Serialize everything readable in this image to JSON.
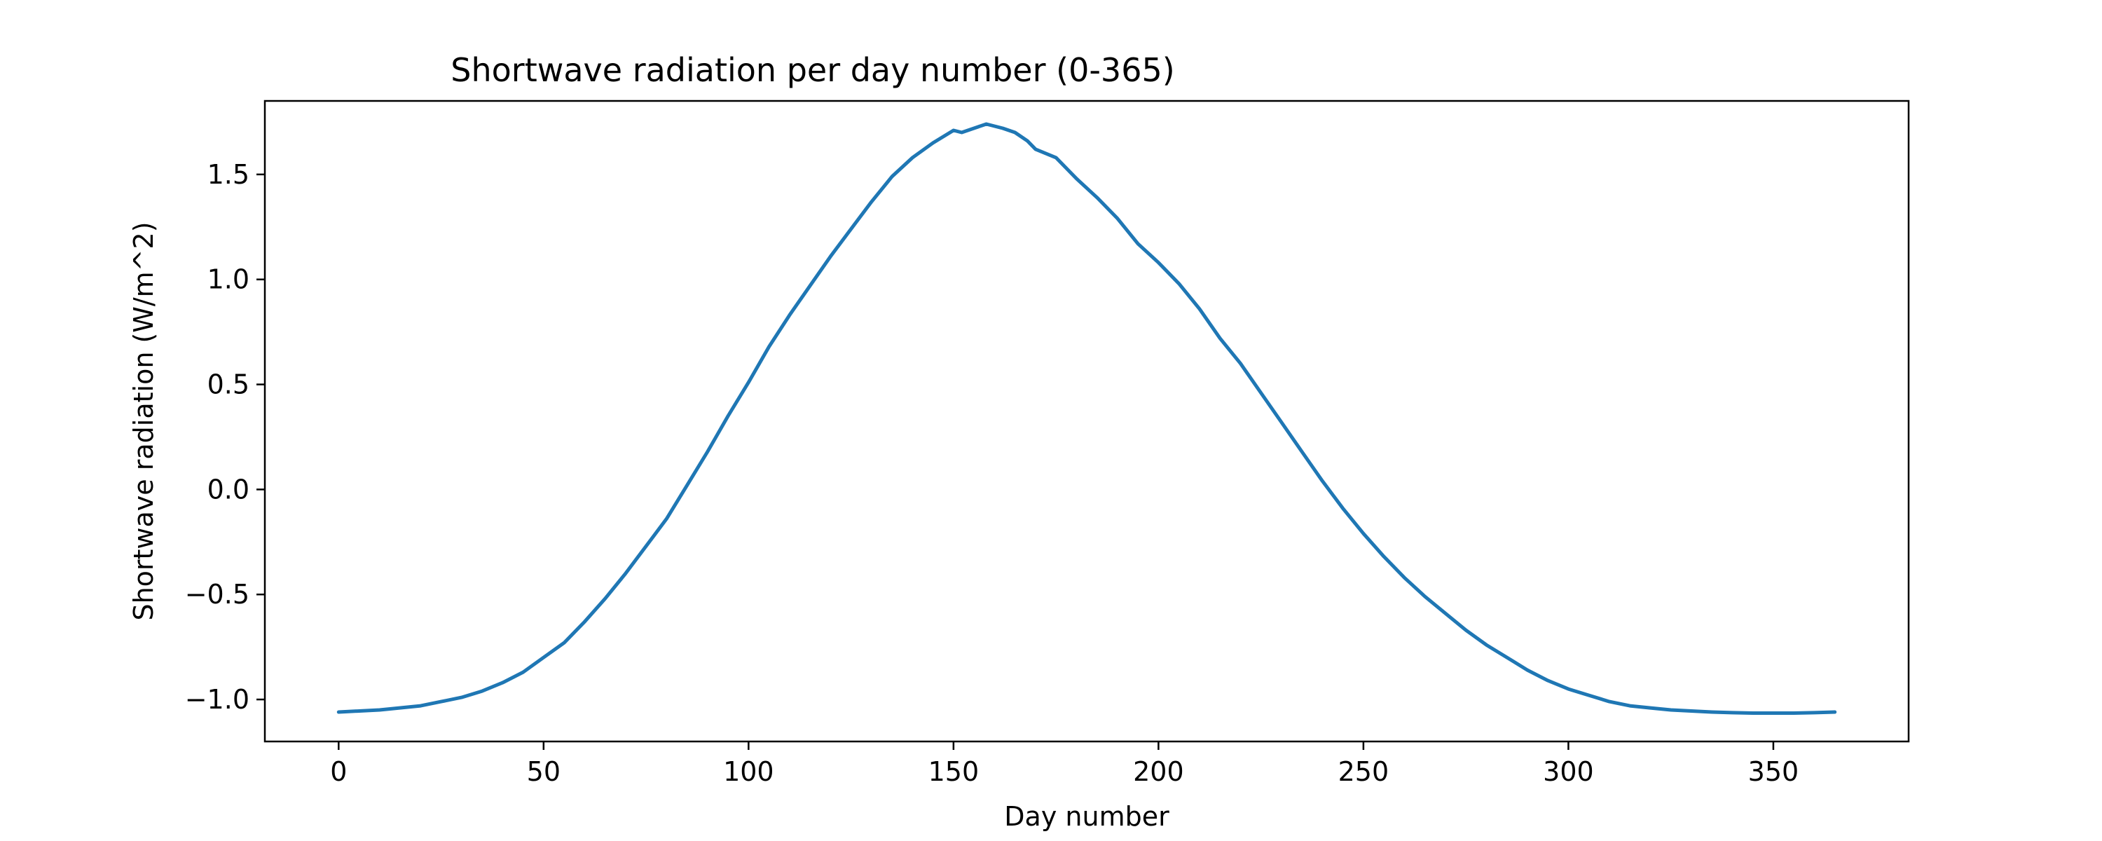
{
  "chart_data": {
    "type": "line",
    "title": "Shortwave radiation per day number (0-365)",
    "xlabel": "Day number",
    "ylabel": "Shortwave radiation (W/m^2)",
    "xlim": [
      -18,
      383
    ],
    "ylim": [
      -1.2,
      1.85
    ],
    "xticks": [
      0,
      50,
      100,
      150,
      200,
      250,
      300,
      350
    ],
    "xtick_labels": [
      "0",
      "50",
      "100",
      "150",
      "200",
      "250",
      "300",
      "350"
    ],
    "yticks": [
      -1.0,
      -0.5,
      0.0,
      0.5,
      1.0,
      1.5
    ],
    "ytick_labels": [
      "−1.0",
      "−0.5",
      "0.0",
      "0.5",
      "1.0",
      "1.5"
    ],
    "grid": false,
    "legend": "none",
    "line_color": "#1f77b4",
    "series": [
      {
        "x": [
          0,
          10,
          20,
          25,
          30,
          35,
          40,
          45,
          50,
          55,
          60,
          65,
          70,
          75,
          80,
          85,
          90,
          95,
          100,
          105,
          110,
          115,
          120,
          125,
          130,
          135,
          140,
          145,
          150,
          152,
          155,
          158,
          160,
          162,
          165,
          168,
          170,
          175,
          180,
          185,
          190,
          195,
          200,
          205,
          210,
          215,
          220,
          225,
          230,
          235,
          240,
          245,
          250,
          255,
          260,
          265,
          270,
          275,
          280,
          285,
          290,
          295,
          300,
          305,
          310,
          315,
          320,
          325,
          330,
          335,
          340,
          345,
          350,
          355,
          360,
          365
        ],
        "y": [
          -1.06,
          -1.05,
          -1.03,
          -1.01,
          -0.99,
          -0.96,
          -0.92,
          -0.87,
          -0.8,
          -0.73,
          -0.63,
          -0.52,
          -0.4,
          -0.27,
          -0.14,
          0.02,
          0.18,
          0.35,
          0.51,
          0.68,
          0.83,
          0.97,
          1.11,
          1.24,
          1.37,
          1.49,
          1.58,
          1.65,
          1.71,
          1.7,
          1.72,
          1.74,
          1.73,
          1.72,
          1.7,
          1.66,
          1.62,
          1.58,
          1.48,
          1.39,
          1.29,
          1.17,
          1.08,
          0.98,
          0.86,
          0.72,
          0.6,
          0.46,
          0.32,
          0.18,
          0.04,
          -0.09,
          -0.21,
          -0.32,
          -0.42,
          -0.51,
          -0.59,
          -0.67,
          -0.74,
          -0.8,
          -0.86,
          -0.91,
          -0.95,
          -0.98,
          -1.01,
          -1.03,
          -1.04,
          -1.05,
          -1.055,
          -1.06,
          -1.063,
          -1.065,
          -1.065,
          -1.065,
          -1.063,
          -1.06
        ]
      }
    ]
  }
}
